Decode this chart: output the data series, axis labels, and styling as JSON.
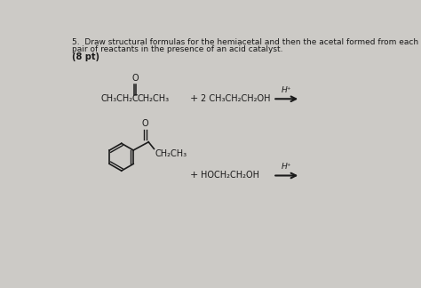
{
  "background_color": "#cccac6",
  "title_line1": "5.  Draw structural formulas for the hemiacetal and then the acetal formed from each",
  "title_line2": "pair of reactants in the presence of an acid catalyst.",
  "title_line3": "(8 pt)",
  "text_color": "#1a1a1a",
  "fs_title": 6.5,
  "fs_chem": 7.0,
  "fs_small": 5.5,
  "rxn1_formula_left": "CH₃CH₂",
  "rxn1_formula_c": "C",
  "rxn1_formula_right": "CH₂CH₃",
  "rxn1_formula_o": "O",
  "rxn1_plus": "+",
  "rxn1_right": "2 CH₃CH₂CH₂OH",
  "rxn1_cat": "H⁺",
  "rxn2_formula_sub": "CH₂CH₃",
  "rxn2_plus": "+",
  "rxn2_right": "HOCH₂CH₂OH",
  "rxn2_cat": "H⁺"
}
